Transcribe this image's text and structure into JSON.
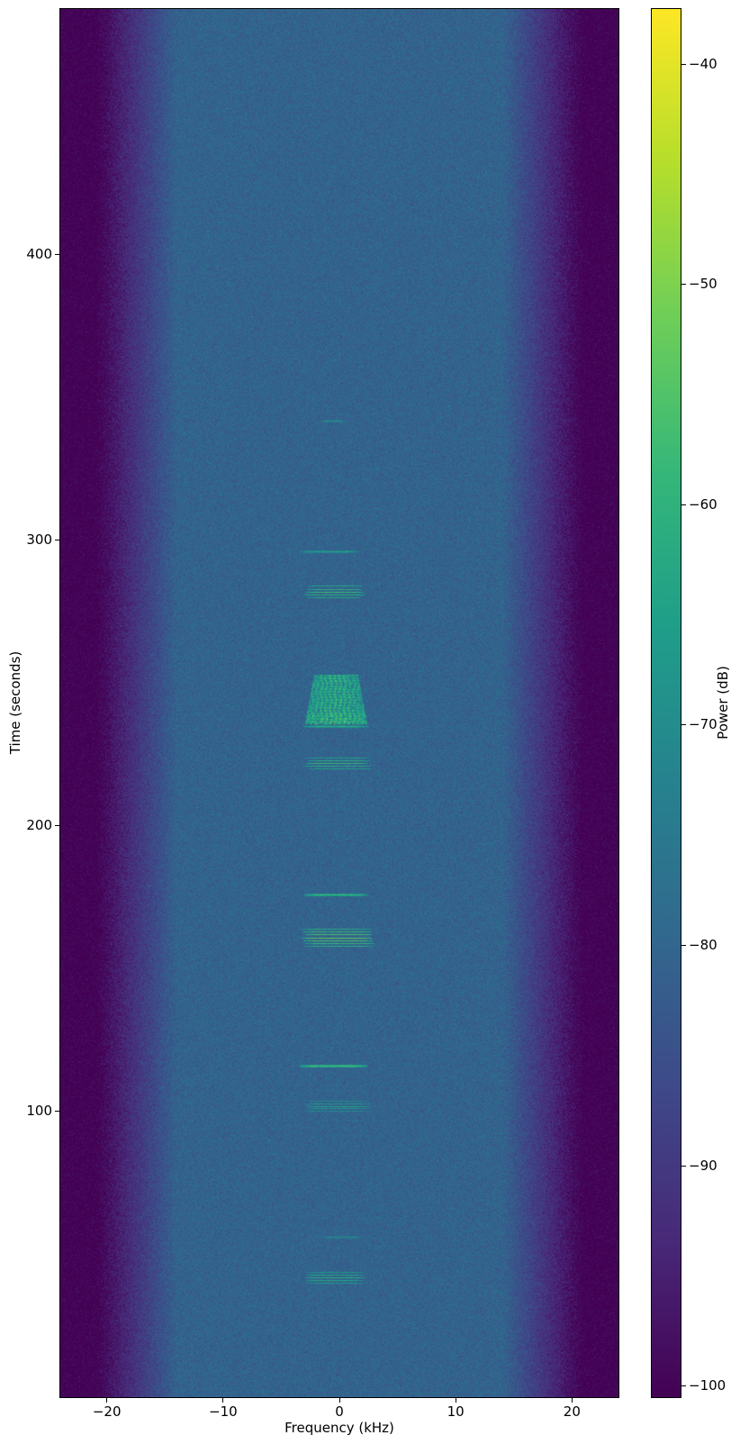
{
  "figure": {
    "xlabel": "Frequency (kHz)",
    "ylabel": "Time (seconds)",
    "colorbar_label": "Power (dB)"
  },
  "chart_data": {
    "type": "heatmap",
    "subtype": "spectrogram",
    "title": "",
    "xlabel": "Frequency (kHz)",
    "ylabel": "Time (seconds)",
    "colorbar_label": "Power (dB)",
    "xlim": [
      -24,
      24
    ],
    "ylim": [
      0,
      486
    ],
    "clim": [
      -100.5,
      -37.5
    ],
    "grid": false,
    "legend": "none",
    "colormap": "viridis",
    "colormap_stops": [
      "#440154",
      "#482878",
      "#3e4989",
      "#31688e",
      "#26828e",
      "#1f9e89",
      "#35b779",
      "#6ece58",
      "#b5de2b",
      "#fde725"
    ],
    "x_ticks": [
      {
        "value": -20,
        "label": "−20"
      },
      {
        "value": -10,
        "label": "−10"
      },
      {
        "value": 0,
        "label": "0"
      },
      {
        "value": 10,
        "label": "10"
      },
      {
        "value": 20,
        "label": "20"
      }
    ],
    "y_ticks": [
      {
        "value": 100,
        "label": "100"
      },
      {
        "value": 200,
        "label": "200"
      },
      {
        "value": 300,
        "label": "300"
      },
      {
        "value": 400,
        "label": "400"
      }
    ],
    "colorbar_ticks": [
      {
        "value": -40,
        "label": "−40"
      },
      {
        "value": -50,
        "label": "−50"
      },
      {
        "value": -60,
        "label": "−60"
      },
      {
        "value": -70,
        "label": "−70"
      },
      {
        "value": -80,
        "label": "−80"
      },
      {
        "value": -90,
        "label": "−90"
      },
      {
        "value": -100,
        "label": "−100"
      }
    ],
    "background": {
      "passband_power_db": -80.5,
      "noise_sigma_db": 2.2,
      "rolloff_start_khz": 14,
      "rolloff_full_khz": 21,
      "stopband_power_db": -101
    },
    "events": [
      {
        "type": "line",
        "time_s": 342,
        "freq_khz": [
          -1.6,
          0.5
        ],
        "power_db": -70
      },
      {
        "type": "line",
        "time_s": 296,
        "freq_khz": [
          -3.5,
          1.6
        ],
        "power_db": -66
      },
      {
        "type": "band",
        "time_s": 282,
        "freq_khz": [
          -2.9,
          2.0
        ],
        "power_db": -58,
        "lines": 5,
        "spacing_s": 1.0
      },
      {
        "type": "blob",
        "time_start_s": 236,
        "time_end_s": 253,
        "freq_khz": [
          -2.8,
          2.2
        ],
        "power_db": -54
      },
      {
        "type": "line",
        "time_s": 235,
        "freq_khz": [
          -3.1,
          2.5
        ],
        "power_db": -63
      },
      {
        "type": "band",
        "time_s": 222,
        "freq_khz": [
          -2.9,
          2.5
        ],
        "power_db": -59,
        "lines": 5,
        "spacing_s": 0.9
      },
      {
        "type": "line",
        "time_s": 176,
        "freq_khz": [
          -3.0,
          2.3
        ],
        "power_db": -60
      },
      {
        "type": "band",
        "time_s": 161,
        "freq_khz": [
          -3.0,
          2.8
        ],
        "power_db": -53,
        "lines": 7,
        "spacing_s": 1.0
      },
      {
        "type": "line",
        "time_s": 116,
        "freq_khz": [
          -3.4,
          2.3
        ],
        "power_db": -58
      },
      {
        "type": "band",
        "time_s": 102,
        "freq_khz": [
          -2.9,
          2.5
        ],
        "power_db": -65,
        "lines": 5,
        "spacing_s": 0.9
      },
      {
        "type": "line",
        "time_s": 56,
        "freq_khz": [
          -1.6,
          2.0
        ],
        "power_db": -71
      },
      {
        "type": "band",
        "time_s": 42,
        "freq_khz": [
          -2.9,
          2.0
        ],
        "power_db": -61,
        "lines": 5,
        "spacing_s": 0.9
      }
    ]
  }
}
